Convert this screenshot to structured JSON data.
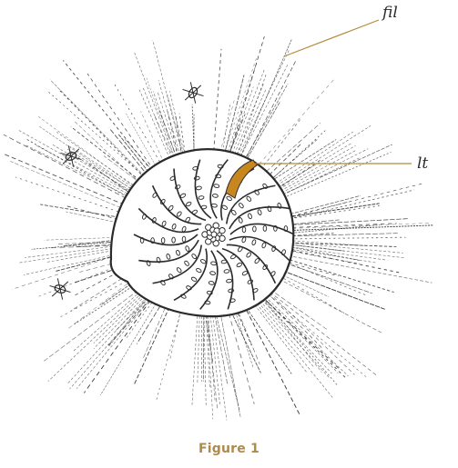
{
  "labels": {
    "filopodia": "fil",
    "lateral_tab": "lt"
  },
  "caption": "Figure 1",
  "colors": {
    "ink": "#2b2b2b",
    "leader_line": "#b58a3c",
    "highlight": "#c8871e",
    "caption": "#b08a48",
    "background": "#ffffff"
  },
  "illustration": "foraminifera-shell-with-radiating-pseudopodia"
}
